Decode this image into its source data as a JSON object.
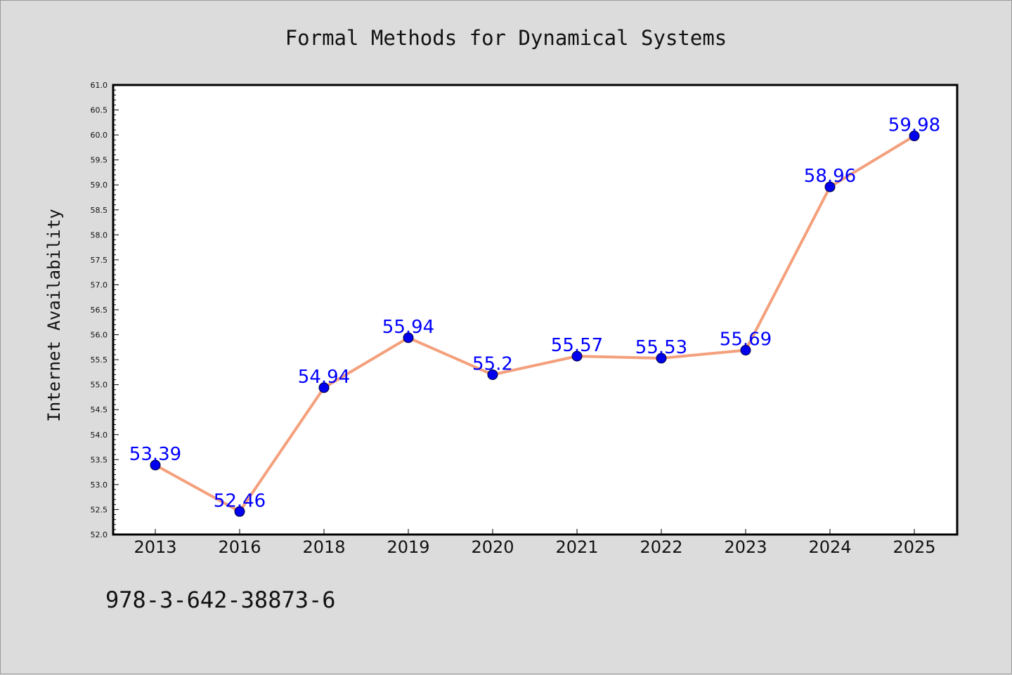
{
  "chart_data": {
    "type": "line",
    "title": "Formal Methods for Dynamical Systems",
    "xlabel": "",
    "ylabel": "Internet Availability",
    "categories": [
      "2013",
      "2016",
      "2018",
      "2019",
      "2020",
      "2021",
      "2022",
      "2023",
      "2024",
      "2025"
    ],
    "series": [
      {
        "values": [
          53.39,
          52.46,
          54.94,
          55.94,
          55.2,
          55.57,
          55.53,
          55.69,
          58.96,
          59.98
        ],
        "data_labels": [
          "53.39",
          "52.46",
          "54.94",
          "55.94",
          "55.2",
          "55.57",
          "55.53",
          "55.69",
          "58.96",
          "59.98"
        ],
        "line_color": "#f4a07c",
        "marker_color": "#0000ee"
      }
    ],
    "ylim": [
      52.0,
      61.0
    ],
    "yticks": [
      "52.0",
      "52.5",
      "53.0",
      "53.5",
      "54.0",
      "54.5",
      "55.0",
      "55.5",
      "56.0",
      "56.5",
      "57.0",
      "57.5",
      "58.0",
      "58.5",
      "59.0",
      "59.5",
      "60.0",
      "60.5",
      "61.0"
    ],
    "grid": false,
    "label_color": "#0000ff"
  },
  "footer": {
    "isbn": "978-3-642-38873-6"
  },
  "colors": {
    "background": "#dcdcdc",
    "plot_background": "#ffffff",
    "axis": "#000000"
  }
}
